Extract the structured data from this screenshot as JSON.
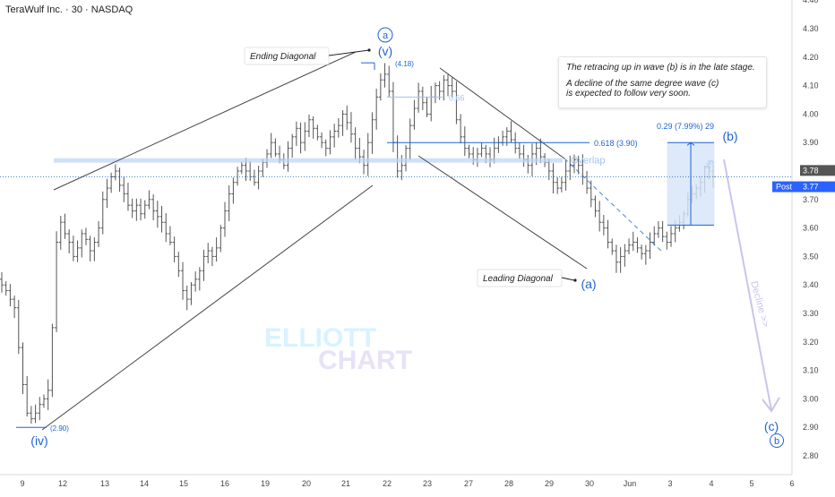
{
  "header": {
    "title": "TeraWulf Inc. · 30 · NASDAQ"
  },
  "info_box": {
    "line1": "The retracing up in wave (b) is in the late stage.",
    "line2": "A decline of the same degree wave (c)",
    "line3": "is expected to follow very soon."
  },
  "colors": {
    "up_bar": "#555555",
    "blue": "#1e63d6",
    "light_blue": "#9fc3f0",
    "trendline": "#444444",
    "decline_arrow": "#c9c4ec",
    "watermark_a": "#d7f3ff",
    "watermark_b": "#e7e2f7"
  },
  "watermark": {
    "line1": "ELLIOTT",
    "line2": "CHART"
  },
  "price_axis": {
    "ticks": [
      "4.40",
      "4.30",
      "4.20",
      "4.10",
      "4.00",
      "3.90",
      "3.80",
      "3.70",
      "3.60",
      "3.50",
      "3.40",
      "3.30",
      "3.20",
      "3.10",
      "3.00",
      "2.90",
      "2.80"
    ],
    "last_price_label": "3.78",
    "post_label": "Post",
    "post_price": "3.77"
  },
  "time_axis": {
    "ticks": [
      "9",
      "12",
      "13",
      "14",
      "15",
      "16",
      "19",
      "20",
      "21",
      "22",
      "23",
      "27",
      "28",
      "29",
      "30",
      "Jun",
      "3",
      "4",
      "5",
      "6"
    ]
  },
  "annotations": {
    "ending_diagonal": "Ending Diagonal",
    "leading_diagonal": "Leading Diagonal",
    "overlap": "Overlap",
    "fib_066": "0.66",
    "fib_0618": "0.618 (3.90)",
    "high_label": "(4.18)",
    "low_label": "(2.90)",
    "measure": "0.29 (7.99%) 29",
    "measure_pct": "3%",
    "decline": "Decline >>"
  },
  "wave_labels": {
    "v": "(v)",
    "a_circle": "a",
    "iv": "(iv)",
    "a": "(a)",
    "b": "(b)",
    "c": "(c)",
    "b_circle": "b"
  },
  "chart_data": {
    "type": "ohlc",
    "title": "TeraWulf Inc. · 30 · NASDAQ",
    "ylim": [
      2.75,
      4.42
    ],
    "y_scale": "linear",
    "grid": false,
    "x_dates": [
      "9",
      "12",
      "13",
      "14",
      "15",
      "16",
      "19",
      "20",
      "21",
      "22",
      "23",
      "27",
      "28",
      "29",
      "30",
      "Jun",
      "3",
      "4",
      "5",
      "6"
    ],
    "key_levels": [
      {
        "label": "(2.90)",
        "value": 2.9
      },
      {
        "label": "(4.18)",
        "value": 4.18
      },
      {
        "label": "0.618 (3.90)",
        "value": 3.9
      },
      {
        "label": "0.66",
        "value": 4.06
      },
      {
        "label": "Overlap",
        "value": 3.84
      },
      {
        "label": "3.78",
        "value": 3.78
      }
    ],
    "waves": [
      {
        "label": "(iv)",
        "price": 2.9
      },
      {
        "label": "(v)",
        "price": 4.18
      },
      {
        "label": "(a)",
        "price": 3.46
      },
      {
        "label": "(b)",
        "price": 3.9
      },
      {
        "label": "(c)",
        "price": 2.95
      }
    ],
    "closes": [
      3.4,
      3.38,
      3.35,
      3.32,
      3.18,
      3.05,
      2.95,
      2.93,
      2.95,
      2.98,
      3.0,
      3.03,
      3.25,
      3.55,
      3.62,
      3.58,
      3.55,
      3.5,
      3.53,
      3.58,
      3.56,
      3.52,
      3.55,
      3.6,
      3.7,
      3.74,
      3.78,
      3.8,
      3.75,
      3.72,
      3.68,
      3.66,
      3.68,
      3.65,
      3.68,
      3.7,
      3.66,
      3.64,
      3.62,
      3.58,
      3.55,
      3.5,
      3.45,
      3.38,
      3.35,
      3.4,
      3.42,
      3.45,
      3.5,
      3.52,
      3.5,
      3.53,
      3.6,
      3.66,
      3.72,
      3.76,
      3.8,
      3.82,
      3.8,
      3.78,
      3.76,
      3.8,
      3.83,
      3.86,
      3.9,
      3.86,
      3.84,
      3.82,
      3.88,
      3.92,
      3.95,
      3.9,
      3.94,
      3.98,
      3.95,
      3.92,
      3.9,
      3.88,
      3.92,
      3.94,
      3.96,
      4.0,
      3.97,
      3.93,
      3.88,
      3.85,
      3.82,
      3.9,
      3.98,
      4.06,
      4.12,
      4.14,
      4.08,
      3.9,
      3.8,
      3.82,
      3.88,
      3.96,
      4.02,
      4.08,
      4.04,
      4.0,
      4.06,
      4.1,
      4.08,
      4.12,
      4.1,
      4.08,
      3.98,
      3.92,
      3.88,
      3.86,
      3.84,
      3.86,
      3.88,
      3.86,
      3.84,
      3.88,
      3.9,
      3.92,
      3.94,
      3.91,
      3.88,
      3.86,
      3.84,
      3.82,
      3.86,
      3.88,
      3.85,
      3.83,
      3.8,
      3.76,
      3.74,
      3.76,
      3.8,
      3.82,
      3.84,
      3.82,
      3.78,
      3.74,
      3.7,
      3.66,
      3.62,
      3.6,
      3.55,
      3.52,
      3.48,
      3.5,
      3.52,
      3.54,
      3.55,
      3.53,
      3.51,
      3.52,
      3.55,
      3.58,
      3.6,
      3.57,
      3.55,
      3.58,
      3.6,
      3.62,
      3.65,
      3.7,
      3.72,
      3.74,
      3.76,
      3.78,
      3.8,
      3.78
    ]
  }
}
